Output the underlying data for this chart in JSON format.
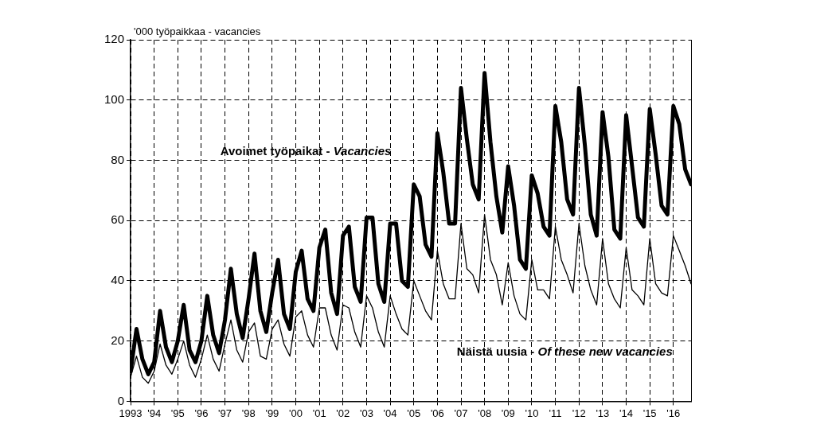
{
  "chart_data": {
    "type": "line",
    "ylabel": "'000 työpaikkaa - vacancies",
    "x": [
      1993,
      1993.25,
      1993.5,
      1993.75,
      1994,
      1994.25,
      1994.5,
      1994.75,
      1995,
      1995.25,
      1995.5,
      1995.75,
      1996,
      1996.25,
      1996.5,
      1996.75,
      1997,
      1997.25,
      1997.5,
      1997.75,
      1998,
      1998.25,
      1998.5,
      1998.75,
      1999,
      1999.25,
      1999.5,
      1999.75,
      2000,
      2000.25,
      2000.5,
      2000.75,
      2001,
      2001.25,
      2001.5,
      2001.75,
      2002,
      2002.25,
      2002.5,
      2002.75,
      2003,
      2003.25,
      2003.5,
      2003.75,
      2004,
      2004.25,
      2004.5,
      2004.75,
      2005,
      2005.25,
      2005.5,
      2005.75,
      2006,
      2006.25,
      2006.5,
      2006.75,
      2007,
      2007.25,
      2007.5,
      2007.75,
      2008,
      2008.25,
      2008.5,
      2008.75,
      2009,
      2009.25,
      2009.5,
      2009.75,
      2010,
      2010.25,
      2010.5,
      2010.75,
      2011,
      2011.25,
      2011.5,
      2011.75,
      2012,
      2012.25,
      2012.5,
      2012.75,
      2013,
      2013.25,
      2013.5,
      2013.75,
      2014,
      2014.25,
      2014.5,
      2014.75,
      2015,
      2015.25,
      2015.5,
      2015.75,
      2016,
      2016.25,
      2016.5,
      2016.75
    ],
    "series": [
      {
        "name": "Avoimet työpaikat - Vacancies",
        "color": "#000000",
        "values": [
          10,
          24,
          14,
          9,
          13,
          30,
          18,
          13,
          20,
          32,
          17,
          13,
          20,
          35,
          22,
          16,
          27,
          44,
          29,
          21,
          34,
          49,
          30,
          23,
          36,
          47,
          29,
          24,
          43,
          50,
          34,
          30,
          51,
          57,
          36,
          29,
          55,
          58,
          38,
          33,
          61,
          61,
          39,
          33,
          59,
          59,
          40,
          38,
          72,
          68,
          52,
          48,
          89,
          76,
          59,
          59,
          104,
          87,
          72,
          67,
          109,
          86,
          68,
          56,
          78,
          65,
          47,
          44,
          75,
          69,
          58,
          55,
          98,
          86,
          67,
          62,
          104,
          85,
          62,
          55,
          96,
          81,
          57,
          54,
          95,
          78,
          61,
          58,
          97,
          82,
          65,
          62,
          98,
          92,
          77,
          72
        ]
      },
      {
        "name": "Näistä uusia - Of these new vacancies",
        "color": "#000000",
        "values": [
          8,
          15,
          8,
          6,
          10,
          19,
          12,
          9,
          14,
          20,
          12,
          8,
          14,
          22,
          14,
          10,
          19,
          27,
          17,
          13,
          23,
          26,
          15,
          14,
          24,
          27,
          19,
          15,
          28,
          30,
          22,
          18,
          31,
          31,
          22,
          17,
          32,
          31,
          23,
          18,
          35,
          31,
          23,
          18,
          35,
          29,
          24,
          22,
          40,
          35,
          30,
          27,
          50,
          39,
          34,
          34,
          59,
          44,
          42,
          36,
          62,
          47,
          42,
          32,
          46,
          35,
          29,
          27,
          47,
          37,
          37,
          34,
          58,
          47,
          42,
          36,
          59,
          45,
          37,
          32,
          54,
          39,
          34,
          31,
          51,
          37,
          35,
          32,
          54,
          39,
          36,
          35,
          55,
          50,
          45,
          39
        ]
      }
    ],
    "xlim": [
      1993,
      2016.75
    ],
    "xticks": [
      1993,
      {
        "value": 1994,
        "label": "'94"
      },
      {
        "value": 1995,
        "label": "'95"
      },
      {
        "value": 1996,
        "label": "'96"
      },
      {
        "value": 1997,
        "label": "'97"
      },
      {
        "value": 1998,
        "label": "'98"
      },
      {
        "value": 1999,
        "label": "'99"
      },
      {
        "value": 2000,
        "label": "'00"
      },
      {
        "value": 2001,
        "label": "'01"
      },
      {
        "value": 2002,
        "label": "'02"
      },
      {
        "value": 2003,
        "label": "'03"
      },
      {
        "value": 2004,
        "label": "'04"
      },
      {
        "value": 2005,
        "label": "'05"
      },
      {
        "value": 2006,
        "label": "'06"
      },
      {
        "value": 2007,
        "label": "'07"
      },
      {
        "value": 2008,
        "label": "'08"
      },
      {
        "value": 2009,
        "label": "'09"
      },
      {
        "value": 2010,
        "label": "'10"
      },
      {
        "value": 2011,
        "label": "'11"
      },
      {
        "value": 2012,
        "label": "'12"
      },
      {
        "value": 2013,
        "label": "'13"
      },
      {
        "value": 2014,
        "label": "'14"
      },
      {
        "value": 2015,
        "label": "'15"
      },
      {
        "value": 2016,
        "label": "'16"
      }
    ],
    "ylim": [
      0,
      120
    ],
    "yticks": [
      0,
      20,
      40,
      60,
      80,
      100,
      120
    ],
    "grid": true,
    "legend": false,
    "marker": "none",
    "line_style": "solid"
  }
}
